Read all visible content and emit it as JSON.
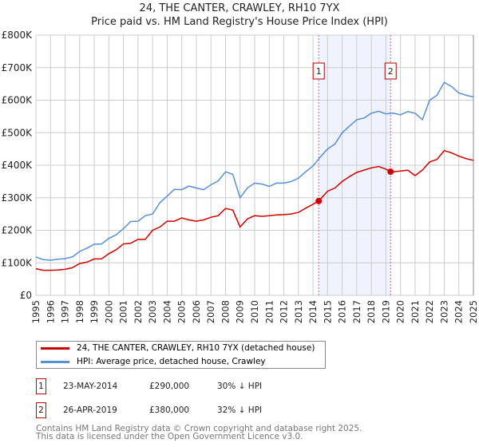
{
  "title": "24, THE CANTER, CRAWLEY, RH10 7YX",
  "subtitle": "Price paid vs. HM Land Registry's House Price Index (HPI)",
  "chart_data": {
    "type": "line",
    "xlim": [
      1995,
      2025
    ],
    "ylim": [
      0,
      800000
    ],
    "yticks": [
      {
        "v": 0,
        "label": "£0"
      },
      {
        "v": 100000,
        "label": "£100K"
      },
      {
        "v": 200000,
        "label": "£200K"
      },
      {
        "v": 300000,
        "label": "£300K"
      },
      {
        "v": 400000,
        "label": "£400K"
      },
      {
        "v": 500000,
        "label": "£500K"
      },
      {
        "v": 600000,
        "label": "£600K"
      },
      {
        "v": 700000,
        "label": "£700K"
      },
      {
        "v": 800000,
        "label": "£800K"
      }
    ],
    "xticks": [
      "1995",
      "1996",
      "1997",
      "1998",
      "1999",
      "2000",
      "2001",
      "2002",
      "2003",
      "2004",
      "2005",
      "2006",
      "2007",
      "2008",
      "2009",
      "2010",
      "2011",
      "2012",
      "2013",
      "2014",
      "2015",
      "2016",
      "2017",
      "2018",
      "2019",
      "2020",
      "2021",
      "2022",
      "2023",
      "2024",
      "2025"
    ],
    "grid": true,
    "shaded_range": [
      2014.39,
      2019.32
    ],
    "series": [
      {
        "name": "24, THE CANTER, CRAWLEY, RH10 7YX (detached house)",
        "color": "#cc0000",
        "x": [
          1995,
          1995.5,
          1996,
          1996.5,
          1997,
          1997.5,
          1998,
          1998.5,
          1999,
          1999.5,
          2000,
          2000.5,
          2001,
          2001.5,
          2002,
          2002.5,
          2003,
          2003.5,
          2004,
          2004.5,
          2005,
          2005.5,
          2006,
          2006.5,
          2007,
          2007.5,
          2008,
          2008.5,
          2009,
          2009.5,
          2010,
          2010.5,
          2011,
          2011.5,
          2012,
          2012.5,
          2013,
          2013.5,
          2014,
          2014.39,
          2015,
          2015.5,
          2016,
          2016.5,
          2017,
          2017.5,
          2018,
          2018.5,
          2019,
          2019.32,
          2019.5,
          2020,
          2020.5,
          2021,
          2021.5,
          2022,
          2022.5,
          2023,
          2023.5,
          2024,
          2024.5,
          2025
        ],
        "y": [
          82000,
          77000,
          77000,
          78000,
          80000,
          85000,
          98000,
          102000,
          112000,
          112000,
          128000,
          140000,
          158000,
          160000,
          172000,
          172000,
          200000,
          210000,
          228000,
          228000,
          238000,
          232000,
          228000,
          232000,
          240000,
          245000,
          267000,
          262000,
          210000,
          235000,
          245000,
          243000,
          245000,
          247000,
          248000,
          250000,
          255000,
          268000,
          280000,
          290000,
          320000,
          330000,
          350000,
          365000,
          378000,
          385000,
          392000,
          396000,
          388000,
          380000,
          380000,
          382000,
          385000,
          368000,
          385000,
          410000,
          418000,
          445000,
          438000,
          428000,
          420000,
          415000
        ]
      },
      {
        "name": "HPI: Average price, detached house, Crawley",
        "color": "#5b8fd4",
        "x": [
          1995,
          1995.5,
          1996,
          1996.5,
          1997,
          1997.5,
          1998,
          1998.5,
          1999,
          1999.5,
          2000,
          2000.5,
          2001,
          2001.5,
          2002,
          2002.5,
          2003,
          2003.5,
          2004,
          2004.5,
          2005,
          2005.5,
          2006,
          2006.5,
          2007,
          2007.5,
          2008,
          2008.5,
          2009,
          2009.5,
          2010,
          2010.5,
          2011,
          2011.5,
          2012,
          2012.5,
          2013,
          2013.5,
          2014,
          2014.5,
          2015,
          2015.5,
          2016,
          2016.5,
          2017,
          2017.5,
          2018,
          2018.5,
          2019,
          2019.5,
          2020,
          2020.5,
          2021,
          2021.5,
          2022,
          2022.5,
          2023,
          2023.5,
          2024,
          2024.5,
          2025
        ],
        "y": [
          118000,
          110000,
          108000,
          111000,
          113000,
          118000,
          135000,
          145000,
          157000,
          158000,
          175000,
          186000,
          205000,
          227000,
          228000,
          245000,
          250000,
          285000,
          305000,
          326000,
          325000,
          336000,
          330000,
          325000,
          340000,
          352000,
          380000,
          372000,
          300000,
          330000,
          345000,
          342000,
          335000,
          345000,
          345000,
          350000,
          360000,
          380000,
          398000,
          425000,
          450000,
          465000,
          500000,
          520000,
          540000,
          545000,
          560000,
          566000,
          558000,
          560000,
          555000,
          565000,
          560000,
          540000,
          600000,
          615000,
          655000,
          642000,
          622000,
          615000,
          610000
        ]
      }
    ],
    "markers": [
      {
        "label": "1",
        "x": 2014.39,
        "y": 290000
      },
      {
        "label": "2",
        "x": 2019.32,
        "y": 380000
      }
    ]
  },
  "legend": [
    {
      "label": "24, THE CANTER, CRAWLEY, RH10 7YX (detached house)",
      "color": "#cc0000"
    },
    {
      "label": "HPI: Average price, detached house, Crawley",
      "color": "#5b8fd4"
    }
  ],
  "transactions": [
    {
      "num": "1",
      "date": "23-MAY-2014",
      "price": "£290,000",
      "delta": "30% ↓ HPI"
    },
    {
      "num": "2",
      "date": "26-APR-2019",
      "price": "£380,000",
      "delta": "32% ↓ HPI"
    }
  ],
  "footer": [
    "Contains HM Land Registry data © Crown copyright and database right 2025.",
    "This data is licensed under the Open Government Licence v3.0."
  ]
}
